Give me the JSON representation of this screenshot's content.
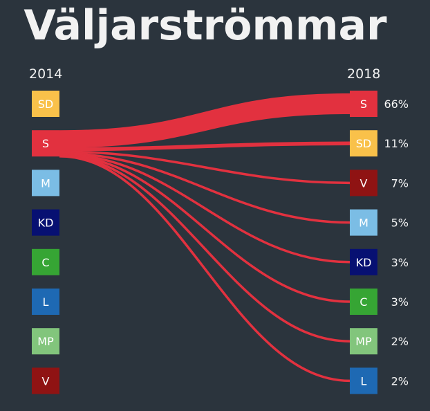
{
  "title": "Väljarströmmar",
  "left_year": "2014",
  "right_year": "2018",
  "colors": {
    "background": "#2b343d",
    "flow": "#e2313f",
    "S": "#e2313f",
    "SD": "#f9c14a",
    "M": "#7bbde5",
    "KD": "#071072",
    "C": "#36a534",
    "L": "#1e69b3",
    "MP": "#82c57c",
    "V": "#8f1313"
  },
  "chart_data": {
    "type": "sankey",
    "title": "Väljarströmmar",
    "source_year": "2014",
    "target_year": "2018",
    "source_parties": [
      "SD",
      "S",
      "M",
      "KD",
      "C",
      "L",
      "MP",
      "V"
    ],
    "target_parties": [
      "S",
      "SD",
      "V",
      "M",
      "KD",
      "C",
      "MP",
      "L"
    ],
    "flows": [
      {
        "from": "S",
        "to": "S",
        "value": 66,
        "label": "66%"
      },
      {
        "from": "S",
        "to": "SD",
        "value": 11,
        "label": "11%"
      },
      {
        "from": "S",
        "to": "V",
        "value": 7,
        "label": "7%"
      },
      {
        "from": "S",
        "to": "M",
        "value": 5,
        "label": "5%"
      },
      {
        "from": "S",
        "to": "KD",
        "value": 3,
        "label": "3%"
      },
      {
        "from": "S",
        "to": "C",
        "value": 3,
        "label": "3%"
      },
      {
        "from": "S",
        "to": "MP",
        "value": 2,
        "label": "2%"
      },
      {
        "from": "S",
        "to": "L",
        "value": 2,
        "label": "2%"
      }
    ]
  }
}
